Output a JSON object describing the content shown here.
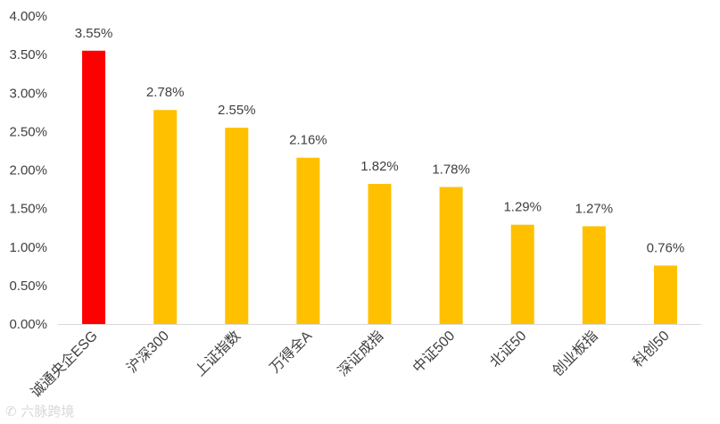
{
  "chart_data": {
    "type": "bar",
    "categories": [
      "诚通央企ESG",
      "沪深300",
      "上证指数",
      "万得全A",
      "深证成指",
      "中证500",
      "北证50",
      "创业板指",
      "科创50"
    ],
    "values": [
      3.55,
      2.78,
      2.55,
      2.16,
      1.82,
      1.78,
      1.29,
      1.27,
      0.76
    ],
    "data_labels": [
      "3.55%",
      "2.78%",
      "2.55%",
      "2.16%",
      "1.82%",
      "1.78%",
      "1.29%",
      "1.27%",
      "0.76%"
    ],
    "y_ticks": [
      0,
      0.5,
      1.0,
      1.5,
      2.0,
      2.5,
      3.0,
      3.5,
      4.0
    ],
    "y_tick_labels": [
      "0.00%",
      "0.50%",
      "1.00%",
      "1.50%",
      "2.00%",
      "2.50%",
      "3.00%",
      "3.50%",
      "4.00%"
    ],
    "ylim": [
      0,
      4.0
    ],
    "grid": false,
    "legend": "none",
    "colors": {
      "highlight": "#ff0000",
      "default": "#ffc000",
      "axis": "#d9d9d9",
      "text": "#404040"
    },
    "highlight_index": 0
  },
  "watermark": {
    "icon": "speech-bubble-icon",
    "text": "六脉跨境"
  }
}
